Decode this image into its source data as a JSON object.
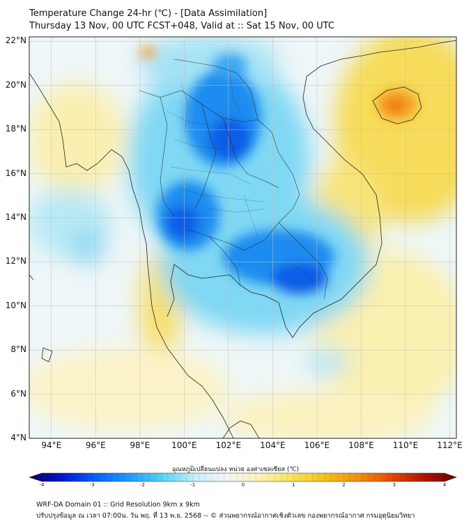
{
  "header": {
    "title_line1": "Temperature Change 24-hr (℃) - [Data Assimilation]",
    "title_line2": "Thursday 13 Nov, 00 UTC FCST+048, Valid at :: Sat 15 Nov, 00 UTC"
  },
  "map": {
    "lat_range": [
      4,
      22.2
    ],
    "lon_range": [
      93,
      112.3
    ],
    "lat_labels": [
      "22°N",
      "20°N",
      "18°N",
      "16°N",
      "14°N",
      "12°N",
      "10°N",
      "8°N",
      "6°N",
      "4°N"
    ],
    "lat_values": [
      22,
      20,
      18,
      16,
      14,
      12,
      10,
      8,
      6,
      4
    ],
    "lon_labels": [
      "94°E",
      "96°E",
      "98°E",
      "100°E",
      "102°E",
      "104°E",
      "106°E",
      "108°E",
      "110°E",
      "112°E"
    ],
    "lon_values": [
      94,
      96,
      98,
      100,
      102,
      104,
      106,
      108,
      110,
      112
    ],
    "colors": {
      "neutral": "#f6f6f6",
      "land_outline": "#222222",
      "gridline": "#bfbfbf"
    }
  },
  "colorbar": {
    "label": "อุณหภูมิเปลี่ยนแปลง หน่วย องศาเซลเซียส (℃)",
    "min": -4,
    "max": 4,
    "ticks": [
      "-4",
      "-3",
      "-2",
      "-1",
      "0",
      "1",
      "2",
      "3",
      "4"
    ],
    "tick_values": [
      -4,
      -3,
      -2,
      -1,
      0,
      1,
      2,
      3,
      4
    ],
    "stops": [
      "#08005a",
      "#0019d2",
      "#0a5cff",
      "#1e9cff",
      "#53d0f4",
      "#bff0fa",
      "#f6f6f6",
      "#fbf3b8",
      "#f6e25a",
      "#f5c21c",
      "#f5900e",
      "#e54a05",
      "#b31500",
      "#6b0000"
    ]
  },
  "footer": {
    "line1": "WRF-DA Domain 01 :: Grid Resolution 9km x 9km",
    "line2": "ปรับปรุงข้อมูล ณ เวลา 07:00น. วัน พฤ. ที่ 13 พ.ย. 2568 -- © ส่วนพยากรณ์อากาศเชิงตัวเลข กองพยากรณ์อากาศ กรมอุตุนิยมวิทยา"
  }
}
